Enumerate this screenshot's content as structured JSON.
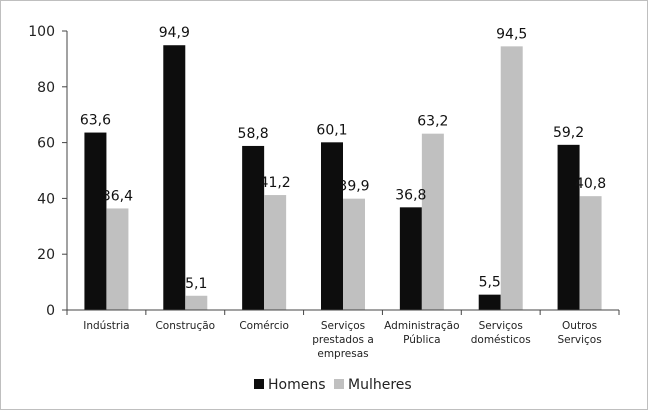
{
  "chart_data": {
    "type": "bar",
    "categories": [
      [
        "Indústria"
      ],
      [
        "Construção"
      ],
      [
        "Comércio"
      ],
      [
        "Serviços",
        "prestados a",
        "empresas"
      ],
      [
        "Administração",
        "Pública"
      ],
      [
        "Serviços",
        "domésticos"
      ],
      [
        "Outros",
        "Serviços"
      ]
    ],
    "series": [
      {
        "name": "Homens",
        "color": "#0d0d0d",
        "values": [
          63.6,
          94.9,
          58.8,
          60.1,
          36.8,
          5.5,
          59.2
        ],
        "labels": [
          "63,6",
          "94,9",
          "58,8",
          "60,1",
          "36,8",
          "5,5",
          "59,2"
        ]
      },
      {
        "name": "Mulheres",
        "color": "#c0c0c0",
        "values": [
          36.4,
          5.1,
          41.2,
          39.9,
          63.2,
          94.5,
          40.8
        ],
        "labels": [
          "36,4",
          "5,1",
          "41,2",
          "39,9",
          "63,2",
          "94,5",
          "40,8"
        ]
      }
    ],
    "ylim": [
      0,
      100
    ],
    "yticks": [
      0,
      20,
      40,
      60,
      80,
      100
    ],
    "grid": false,
    "legend": "bottom",
    "title": "",
    "xlabel": "",
    "ylabel": ""
  }
}
